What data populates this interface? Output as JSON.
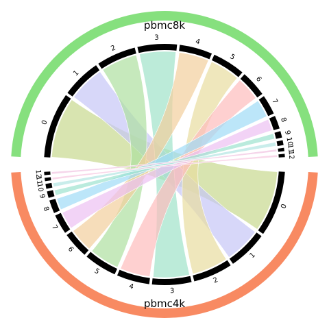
{
  "diagram": {
    "type": "chord",
    "groups": [
      {
        "name": "pbmc8k",
        "color": "#86e07e",
        "clusters": [
          "0",
          "1",
          "2",
          "3",
          "4",
          "5",
          "6",
          "7",
          "8",
          "9",
          "10",
          "11",
          "12"
        ]
      },
      {
        "name": "pbmc4k",
        "color": "#f88a62",
        "clusters": [
          "0",
          "1",
          "2",
          "3",
          "4",
          "5",
          "6",
          "7",
          "8",
          "9",
          "10",
          "11",
          "12"
        ]
      }
    ],
    "cluster_sizes": [
      20,
      12,
      12,
      12,
      10,
      10,
      8,
      6,
      4,
      2,
      1.5,
      1,
      1
    ],
    "link_colors": [
      "#c7d98f",
      "#c6c6f7",
      "#aedfa0",
      "#9fe2c9",
      "#f2cf9d",
      "#e8dd9f",
      "#fdbcbc",
      "#9fdbf7",
      "#ecc1f2",
      "#9ce3cf",
      "#b2e5e2",
      "#f1c3e1",
      "#f7c6df"
    ],
    "links": [
      {
        "from": 0,
        "to": 0
      },
      {
        "from": 1,
        "to": 1
      },
      {
        "from": 2,
        "to": 5
      },
      {
        "from": 3,
        "to": 3
      },
      {
        "from": 4,
        "to": 6
      },
      {
        "from": 5,
        "to": 2
      },
      {
        "from": 6,
        "to": 4
      },
      {
        "from": 7,
        "to": 8
      },
      {
        "from": 8,
        "to": 7
      },
      {
        "from": 9,
        "to": 9
      },
      {
        "from": 10,
        "to": 10
      },
      {
        "from": 11,
        "to": 12
      },
      {
        "from": 12,
        "to": 11
      }
    ]
  }
}
